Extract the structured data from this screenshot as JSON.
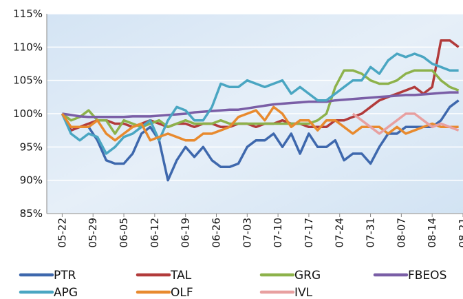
{
  "chart_data": {
    "type": "line",
    "x": [
      0,
      2,
      4,
      6,
      8,
      10,
      12,
      14,
      16,
      18,
      20,
      22,
      24,
      26,
      28,
      30,
      32,
      34,
      36,
      38,
      40,
      42,
      44,
      46,
      48,
      50,
      52,
      54,
      56,
      58,
      60,
      62,
      64,
      66,
      68,
      70,
      72,
      74,
      76,
      78,
      80,
      82,
      84,
      86,
      88,
      90
    ],
    "xlim": [
      -3.5,
      91
    ],
    "xticks": [
      {
        "value": 0,
        "label": "05-22"
      },
      {
        "value": 7,
        "label": "05-29"
      },
      {
        "value": 14,
        "label": "06-05"
      },
      {
        "value": 21,
        "label": "06-12"
      },
      {
        "value": 28,
        "label": "06-19"
      },
      {
        "value": 35,
        "label": "06-26"
      },
      {
        "value": 42,
        "label": "07-03"
      },
      {
        "value": 49,
        "label": "07-10"
      },
      {
        "value": 56,
        "label": "07-17"
      },
      {
        "value": 63,
        "label": "07-24"
      },
      {
        "value": 70,
        "label": "07-31"
      },
      {
        "value": 77,
        "label": "08-07"
      },
      {
        "value": 84,
        "label": "08-14"
      },
      {
        "value": 91,
        "label": "08-21"
      }
    ],
    "ylim": [
      85,
      115
    ],
    "yticks": [
      {
        "value": 85,
        "label": "85%"
      },
      {
        "value": 90,
        "label": "90%"
      },
      {
        "value": 95,
        "label": "95%"
      },
      {
        "value": 100,
        "label": "100%"
      },
      {
        "value": 105,
        "label": "105%"
      },
      {
        "value": 110,
        "label": "110%"
      },
      {
        "value": 115,
        "label": "115%"
      }
    ],
    "grid": true,
    "legend": "bottom",
    "series": [
      {
        "name": "PTR",
        "color": "#3e68ad",
        "values": [
          100,
          97.5,
          98,
          98,
          96,
          93,
          92.5,
          92.5,
          94,
          97,
          98,
          96,
          90,
          93,
          95,
          93.5,
          95,
          93,
          92,
          92,
          92.5,
          95,
          96,
          96,
          97,
          95,
          97,
          94,
          97,
          95,
          95,
          96,
          93,
          94,
          94,
          92.5,
          95,
          97,
          97,
          98,
          98,
          98,
          98,
          99,
          101,
          102
        ]
      },
      {
        "name": "TAL",
        "color": "#b23b3b",
        "values": [
          100,
          97.5,
          98,
          98.5,
          99,
          99,
          98.5,
          98.5,
          98,
          98.5,
          99,
          98.5,
          98,
          98.5,
          98.5,
          98,
          98.5,
          98.5,
          98,
          98,
          98.5,
          98.5,
          98,
          98.5,
          98.5,
          99,
          98.5,
          98.5,
          98,
          98,
          98,
          99,
          99,
          99.5,
          100,
          101,
          102,
          102.5,
          103,
          103.5,
          104,
          103,
          104,
          111,
          111,
          110
        ]
      },
      {
        "name": "GRG",
        "color": "#8db24b",
        "values": [
          100,
          99,
          99.5,
          100.5,
          99,
          99,
          97,
          99,
          98.5,
          98,
          98.5,
          99,
          98,
          98.5,
          99,
          98.5,
          98.5,
          98.5,
          99,
          98.5,
          98.5,
          98.5,
          98.5,
          98.5,
          98.5,
          98.5,
          98.5,
          98.5,
          98.5,
          99,
          100,
          104,
          106.5,
          106.5,
          106,
          105,
          104.5,
          104.5,
          105,
          106,
          106.5,
          106.5,
          106.5,
          105,
          104,
          103.5
        ]
      },
      {
        "name": "FBEOS",
        "color": "#7a5ea6",
        "values": [
          100,
          99.8,
          99.6,
          99.5,
          99.5,
          99.5,
          99.5,
          99.5,
          99.6,
          99.6,
          99.6,
          99.7,
          99.8,
          99.9,
          100,
          100.2,
          100.3,
          100.4,
          100.5,
          100.6,
          100.6,
          100.8,
          101,
          101.2,
          101.4,
          101.5,
          101.6,
          101.7,
          101.8,
          101.8,
          101.8,
          102,
          102.1,
          102.2,
          102.3,
          102.4,
          102.5,
          102.6,
          102.7,
          102.8,
          102.8,
          102.9,
          103,
          103.1,
          103.2,
          103.2
        ]
      },
      {
        "name": "APG",
        "color": "#4aa6c2",
        "values": [
          100,
          97,
          96,
          97,
          96.5,
          94,
          95,
          96.5,
          97,
          98,
          99,
          96,
          99,
          101,
          100.5,
          99,
          99,
          101,
          104.5,
          104,
          104,
          105,
          104.5,
          104,
          104.5,
          105,
          103,
          104,
          103,
          102,
          102,
          103,
          104,
          105,
          105,
          107,
          106,
          108,
          109,
          108.5,
          109,
          108.5,
          107.5,
          107,
          106.5,
          106.5
        ]
      },
      {
        "name": "OLF",
        "color": "#e88a2e",
        "values": [
          100,
          98,
          98,
          98,
          99,
          97,
          96,
          97,
          98,
          98.5,
          96,
          96.5,
          97,
          96.5,
          96,
          96,
          97,
          97,
          97.5,
          98,
          99.5,
          100,
          100.5,
          99,
          101,
          100,
          98,
          99,
          99,
          97.5,
          99,
          99,
          98,
          97,
          98,
          98,
          98,
          97,
          98,
          97,
          97.5,
          98,
          98.5,
          98,
          98,
          98
        ]
      },
      {
        "name": "IVL",
        "color": "#e8a0a0",
        "values": [
          null,
          null,
          null,
          null,
          null,
          null,
          null,
          null,
          null,
          null,
          null,
          null,
          null,
          null,
          null,
          null,
          null,
          null,
          null,
          null,
          null,
          null,
          null,
          null,
          null,
          null,
          null,
          null,
          null,
          null,
          null,
          null,
          null,
          100,
          99,
          98,
          97,
          98,
          99,
          100,
          100,
          99,
          98,
          98.5,
          98,
          97.5
        ]
      }
    ]
  }
}
